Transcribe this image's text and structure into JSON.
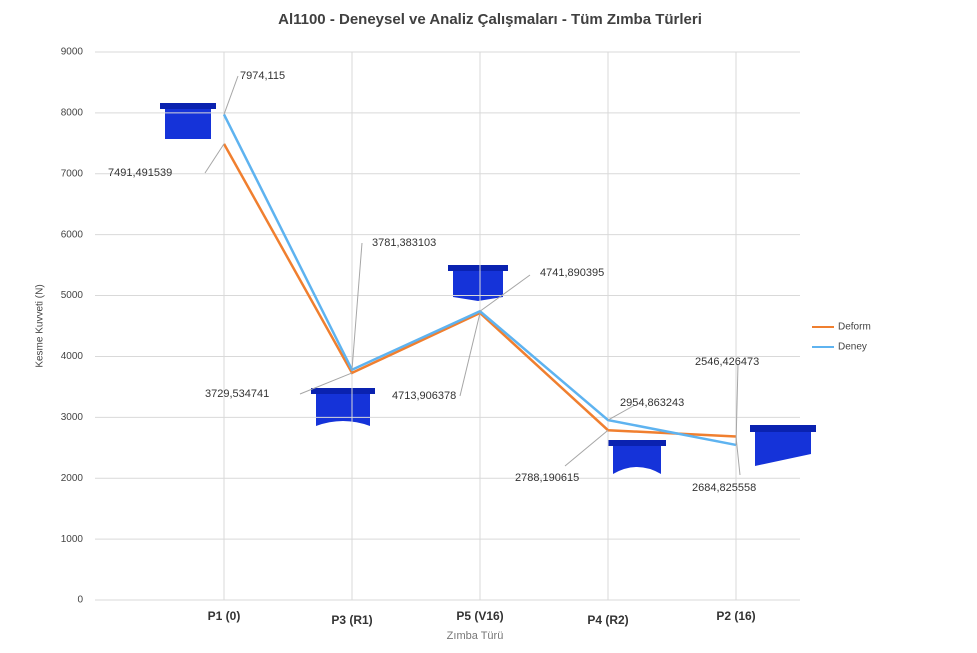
{
  "chart_data": {
    "type": "line",
    "title": "Al1100 - Deneysel ve Analiz Çalışmaları - Tüm Zımba Türleri",
    "x_label": "Zımba Türü",
    "y_label": "Kesme Kuvveti (N)",
    "categories": [
      "P1 (0)",
      "P3 (R1)",
      "P5 (V16)",
      "P4 (R2)",
      "P2 (16)"
    ],
    "series": [
      {
        "name": "Deform",
        "color": "#f07f2f",
        "values": [
          7491.491539,
          3729.534741,
          4713.906378,
          2788.190615,
          2684.825558
        ],
        "value_labels": [
          "7491,491539",
          "3729,534741",
          "4713,906378",
          "2788,190615",
          "2684,825558"
        ]
      },
      {
        "name": "Deney",
        "color": "#5eb3f0",
        "values": [
          7974.115,
          3781.383103,
          4741.890395,
          2954.863243,
          2546.426473
        ],
        "value_labels": [
          "7974,115",
          "3781,383103",
          "4741,890395",
          "2954,863243",
          "2546,426473"
        ]
      }
    ],
    "ylim": [
      0,
      9000
    ],
    "yticks": [
      0,
      1000,
      2000,
      3000,
      4000,
      5000,
      6000,
      7000,
      8000,
      9000
    ],
    "grid": true,
    "legend": "right"
  }
}
